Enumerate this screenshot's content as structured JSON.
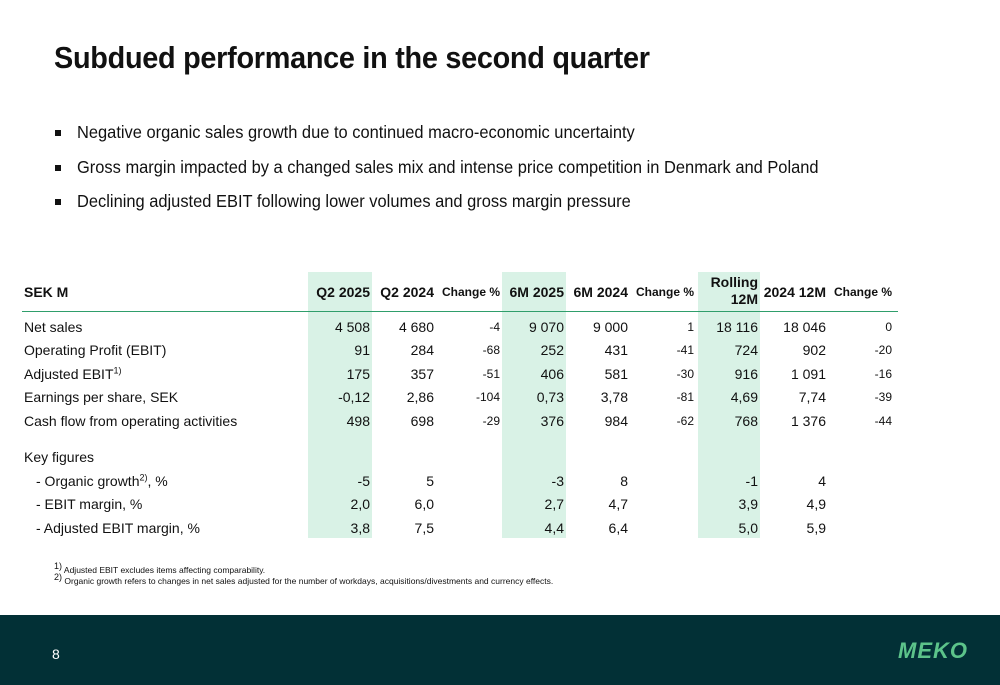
{
  "title": "Subdued performance in the second quarter",
  "bullets": [
    "Negative organic sales growth due to continued macro-economic uncertainty",
    "Gross margin impacted by a changed sales mix and intense price competition in Denmark and Poland",
    "Declining adjusted EBIT following lower volumes and gross margin pressure"
  ],
  "table": {
    "headers": [
      "SEK M",
      "Q2 2025",
      "Q2 2024",
      "Change %",
      "6M 2025",
      "6M 2024",
      "Change %",
      "Rolling 12M",
      "2024 12M",
      "Change %"
    ],
    "rows": [
      {
        "label": "Net sales",
        "sup": "",
        "label_suffix": "",
        "values": [
          "4 508",
          "4 680",
          "-4",
          "9 070",
          "9 000",
          "1",
          "18 116",
          "18 046",
          "0"
        ]
      },
      {
        "label": "Operating Profit (EBIT)",
        "sup": "",
        "label_suffix": "",
        "values": [
          "91",
          "284",
          "-68",
          "252",
          "431",
          "-41",
          "724",
          "902",
          "-20"
        ]
      },
      {
        "label": "Adjusted EBIT",
        "sup": "1)",
        "label_suffix": "",
        "values": [
          "175",
          "357",
          "-51",
          "406",
          "581",
          "-30",
          "916",
          "1 091",
          "-16"
        ]
      },
      {
        "label": "Earnings per share, SEK",
        "sup": "",
        "label_suffix": "",
        "values": [
          "-0,12",
          "2,86",
          "-104",
          "0,73",
          "3,78",
          "-81",
          "4,69",
          "7,74",
          "-39"
        ]
      },
      {
        "label": "Cash flow from operating activities",
        "sup": "",
        "label_suffix": "",
        "values": [
          "498",
          "698",
          "-29",
          "376",
          "984",
          "-62",
          "768",
          "1 376",
          "-44"
        ]
      }
    ],
    "key_figures_label": "Key figures",
    "key_rows": [
      {
        "label": "- Organic growth",
        "sup": "2)",
        "label_suffix": ", %",
        "values": [
          "-5",
          "5",
          "",
          "-3",
          "8",
          "",
          "-1",
          "4",
          ""
        ]
      },
      {
        "label": "- EBIT margin, %",
        "sup": "",
        "label_suffix": "",
        "values": [
          "2,0",
          "6,0",
          "",
          "2,7",
          "4,7",
          "",
          "3,9",
          "4,9",
          ""
        ]
      },
      {
        "label": "- Adjusted EBIT margin, %",
        "sup": "",
        "label_suffix": "",
        "values": [
          "3,8",
          "7,5",
          "",
          "4,4",
          "6,4",
          "",
          "5,0",
          "5,9",
          ""
        ]
      }
    ]
  },
  "footnotes": [
    {
      "mark": "1)",
      "text": " Adjusted EBIT excludes items affecting comparability."
    },
    {
      "mark": "2)",
      "text": " Organic growth refers to changes in net sales adjusted for the number of workdays, acquisitions/divestments and currency effects."
    }
  ],
  "page_number": "8",
  "logo_text": "MEKO",
  "colors": {
    "highlight": "#d9f2e6",
    "rule": "#2f9e6b",
    "footer_bg": "#023036",
    "logo": "#5cc38a"
  }
}
